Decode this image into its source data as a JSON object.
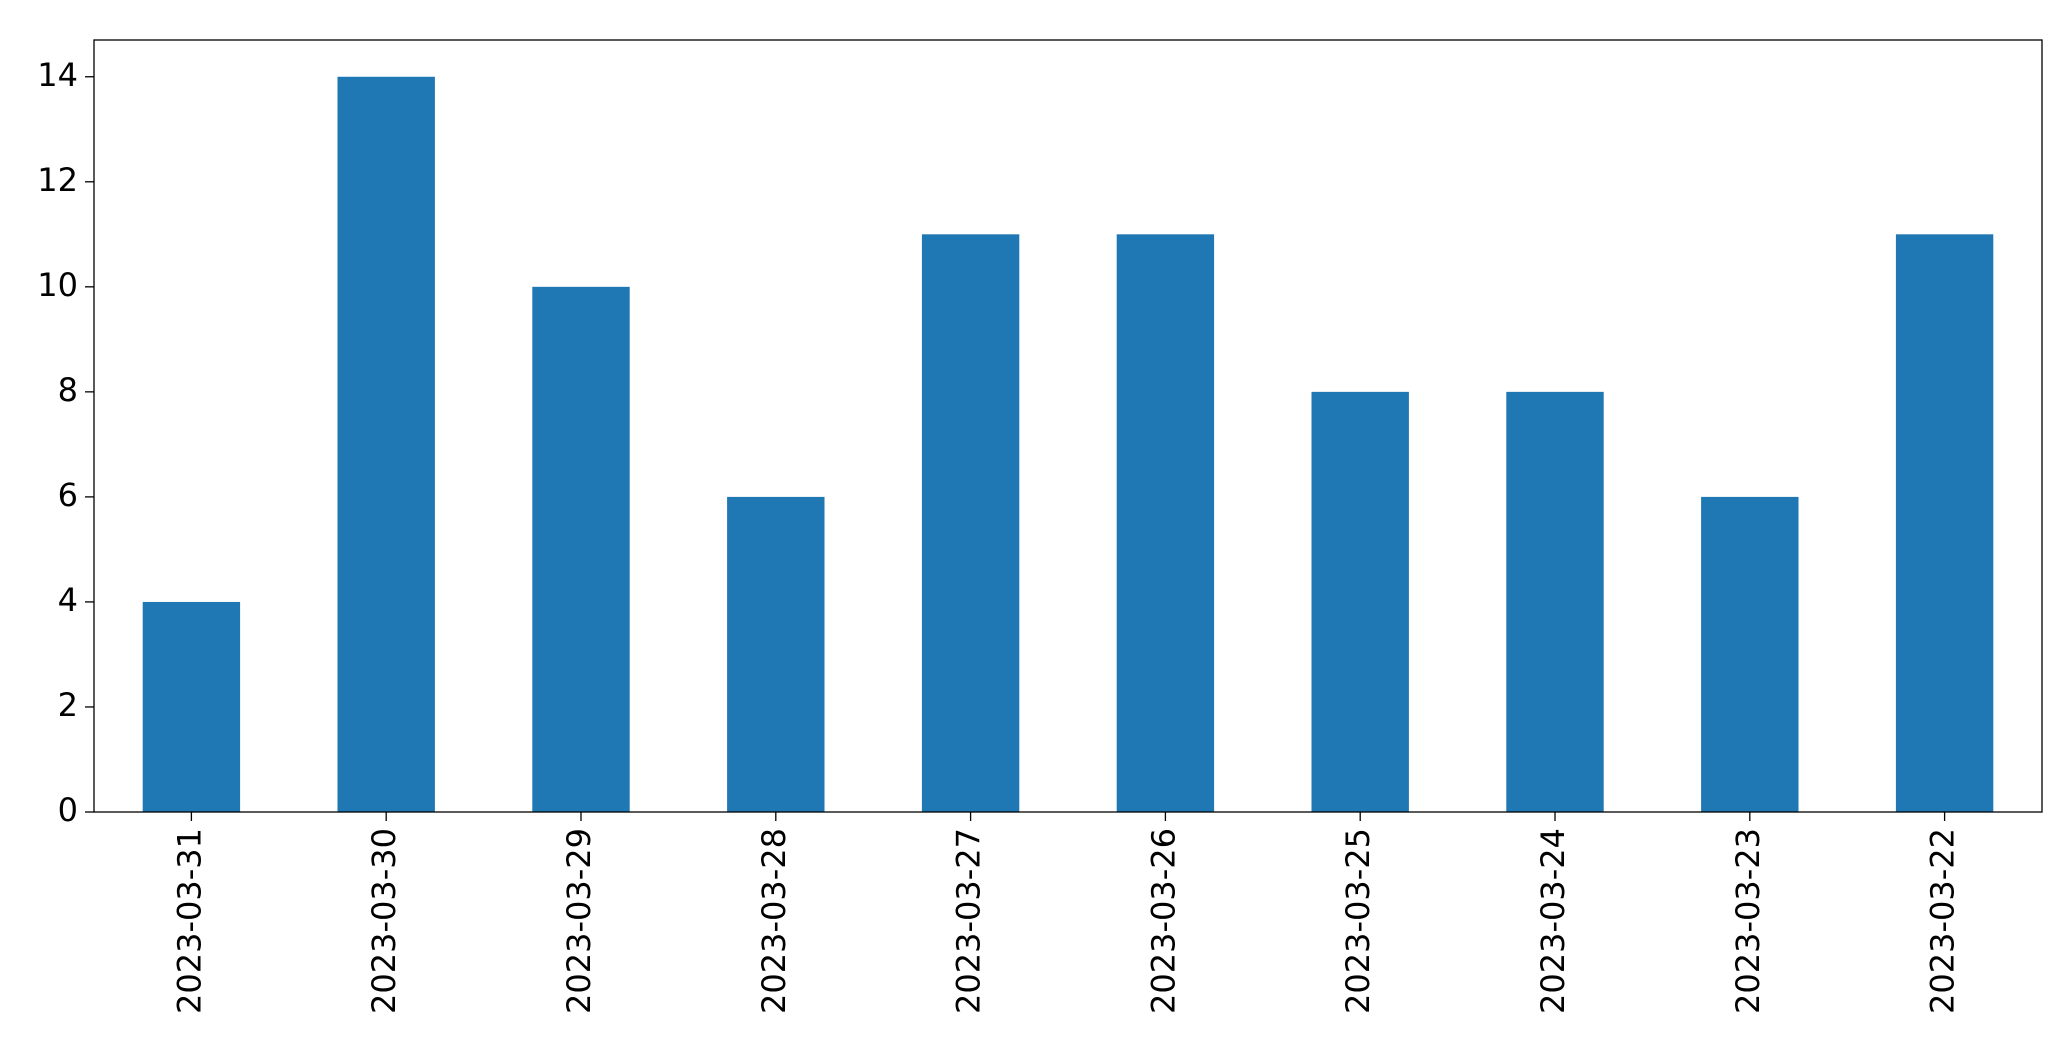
{
  "chart_data": {
    "type": "bar",
    "categories": [
      "2023-03-31",
      "2023-03-30",
      "2023-03-29",
      "2023-03-28",
      "2023-03-27",
      "2023-03-26",
      "2023-03-25",
      "2023-03-24",
      "2023-03-23",
      "2023-03-22"
    ],
    "values": [
      4,
      14,
      10,
      6,
      11,
      11,
      8,
      8,
      6,
      11
    ],
    "color": "#1f77b4",
    "ylim": [
      0,
      14.7
    ],
    "yticks": [
      0,
      2,
      4,
      6,
      8,
      10,
      12,
      14
    ],
    "grid": false
  }
}
